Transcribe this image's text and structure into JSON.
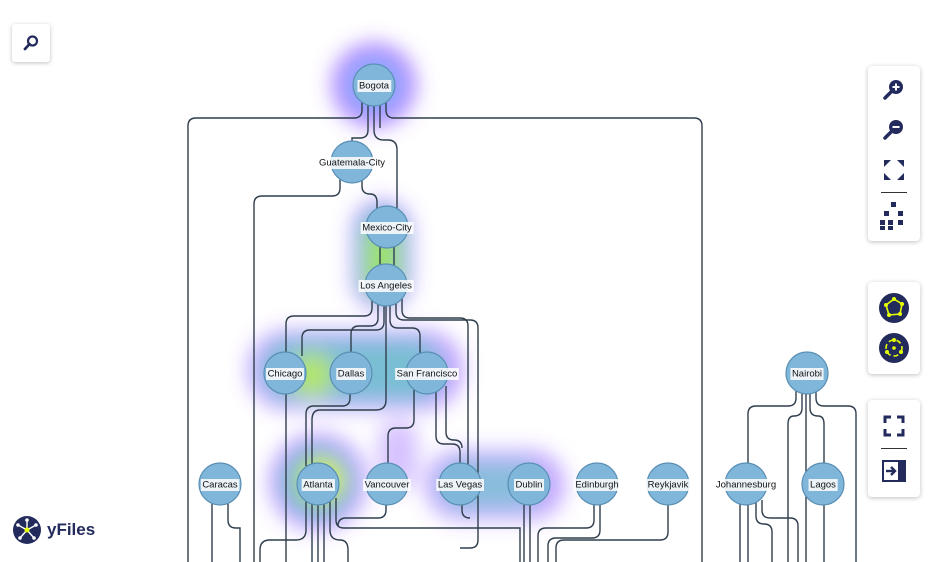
{
  "app": {
    "brand": "yFiles"
  },
  "controls": {
    "search_icon": "search-icon",
    "zoom_in_icon": "zoom-in-icon",
    "zoom_out_icon": "zoom-out-icon",
    "fit_icon": "fit-content-icon",
    "layout_icon": "layout-icon",
    "layout_a_icon": "organic-layout-icon",
    "layout_b_icon": "radial-layout-icon",
    "fullscreen_icon": "fullscreen-icon",
    "exit_icon": "exit-icon"
  },
  "colors": {
    "node_fill": "#7fb6d9",
    "node_stroke": "#5a8fb5",
    "edge": "#2f3e4c",
    "brand": "#232a5c",
    "heat_low": "#7b3cff",
    "heat_mid": "#00e08a",
    "heat_high": "#f4ff00"
  },
  "graph": {
    "nodes": [
      "Bogota",
      "Guatemala-City",
      "Mexico-City",
      "Los Angeles",
      "Chicago",
      "Dallas",
      "San Francisco",
      "Nairobi",
      "Caracas",
      "Atlanta",
      "Vancouver",
      "Las Vegas",
      "Dublin",
      "Edinburgh",
      "Reykjavik",
      "Johannesburg",
      "Lagos"
    ]
  }
}
